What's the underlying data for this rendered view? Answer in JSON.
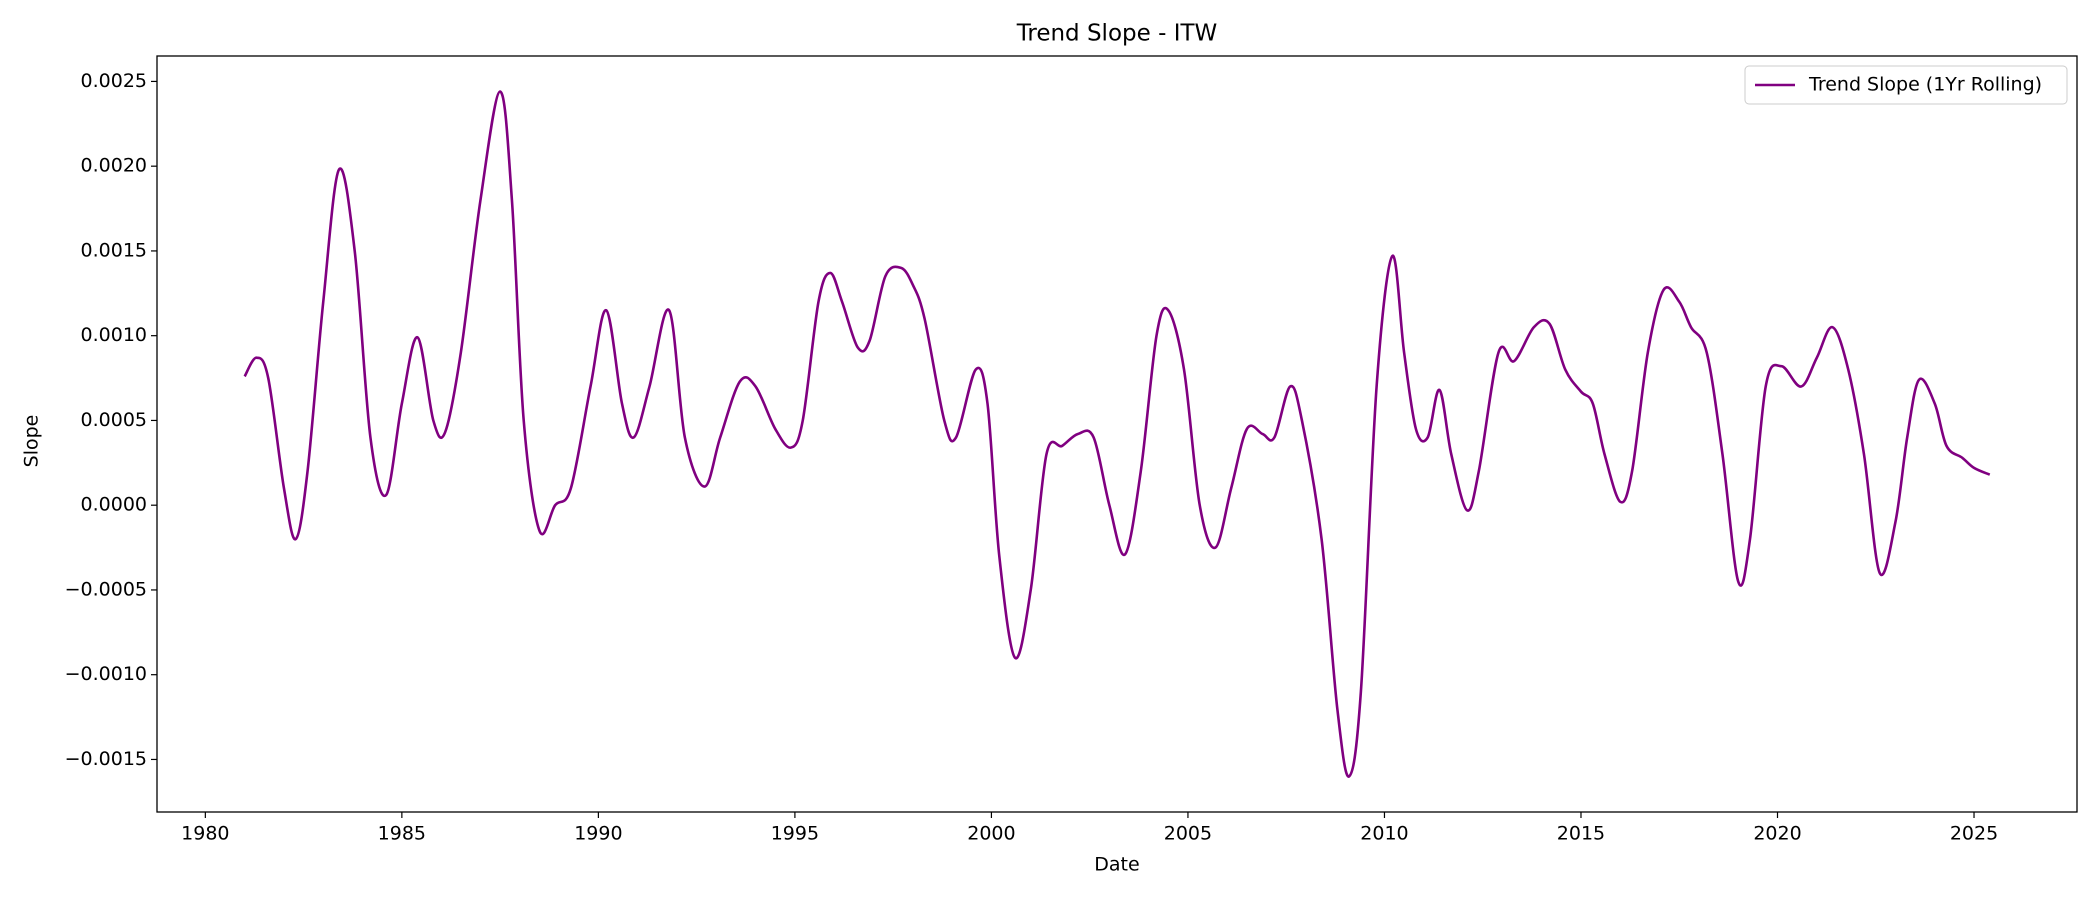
{
  "chart_data": {
    "type": "line",
    "title": "Trend Slope - ITW",
    "x_label": "Date",
    "y_label": "Slope",
    "x": [
      1981.0,
      1981.3,
      1981.6,
      1982.0,
      1982.3,
      1982.6,
      1983.0,
      1983.4,
      1983.8,
      1984.2,
      1984.6,
      1985.0,
      1985.4,
      1985.8,
      1986.1,
      1986.5,
      1987.0,
      1987.5,
      1987.8,
      1988.1,
      1988.5,
      1988.9,
      1989.3,
      1989.8,
      1990.2,
      1990.6,
      1990.9,
      1991.3,
      1991.8,
      1992.2,
      1992.7,
      1993.1,
      1993.6,
      1994.0,
      1994.5,
      1994.9,
      1995.2,
      1995.6,
      1995.9,
      1996.2,
      1996.6,
      1996.9,
      1997.3,
      1997.7,
      1998.0,
      1998.3,
      1998.8,
      1999.1,
      1999.6,
      1999.9,
      2000.2,
      2000.6,
      2001.0,
      2001.4,
      2001.8,
      2002.2,
      2002.6,
      2003.0,
      2003.4,
      2003.8,
      2004.2,
      2004.5,
      2004.9,
      2005.3,
      2005.7,
      2006.1,
      2006.5,
      2006.9,
      2007.2,
      2007.6,
      2007.9,
      2008.4,
      2008.8,
      2009.1,
      2009.4,
      2009.8,
      2010.2,
      2010.5,
      2010.8,
      2011.1,
      2011.4,
      2011.7,
      2012.1,
      2012.4,
      2012.9,
      2013.3,
      2013.8,
      2014.2,
      2014.6,
      2015.0,
      2015.3,
      2015.6,
      2016.0,
      2016.3,
      2016.7,
      2017.1,
      2017.5,
      2017.8,
      2018.2,
      2018.6,
      2019.0,
      2019.3,
      2019.7,
      2020.1,
      2020.6,
      2021.0,
      2021.4,
      2021.8,
      2022.2,
      2022.6,
      2023.0,
      2023.3,
      2023.6,
      2024.0,
      2024.3,
      2024.7,
      2025.0,
      2025.4
    ],
    "series": [
      {
        "name": "Trend Slope (1Yr Rolling)",
        "color": "#800080",
        "values": [
          0.00076,
          0.00087,
          0.00075,
          0.0001,
          -0.0002,
          0.0002,
          0.0012,
          0.00198,
          0.0015,
          0.0004,
          6e-05,
          0.0006,
          0.00099,
          0.0005,
          0.00043,
          0.0009,
          0.0018,
          0.00244,
          0.0018,
          0.0005,
          -0.00015,
          0.0,
          0.0001,
          0.0007,
          0.00115,
          0.0006,
          0.0004,
          0.0007,
          0.00115,
          0.0004,
          0.00011,
          0.0004,
          0.00073,
          0.0007,
          0.00045,
          0.00034,
          0.0005,
          0.0012,
          0.00137,
          0.0012,
          0.00093,
          0.00097,
          0.00135,
          0.0014,
          0.0013,
          0.0011,
          0.0005,
          0.0004,
          0.0008,
          0.0006,
          -0.0003,
          -0.0009,
          -0.0005,
          0.0003,
          0.00035,
          0.00042,
          0.0004,
          0.0,
          -0.00029,
          0.0002,
          0.001,
          0.00115,
          0.0008,
          0.0,
          -0.00025,
          0.0001,
          0.00045,
          0.00042,
          0.0004,
          0.0007,
          0.0005,
          -0.0002,
          -0.0012,
          -0.0016,
          -0.0011,
          0.0007,
          0.00147,
          0.0009,
          0.00045,
          0.0004,
          0.00068,
          0.0003,
          -3e-05,
          0.0002,
          0.0009,
          0.00085,
          0.00105,
          0.00107,
          0.0008,
          0.00067,
          0.0006,
          0.0003,
          2e-05,
          0.0002,
          0.0009,
          0.00127,
          0.0012,
          0.00105,
          0.0009,
          0.0003,
          -0.00045,
          -0.0002,
          0.0007,
          0.00082,
          0.0007,
          0.00087,
          0.00105,
          0.0008,
          0.0003,
          -0.0004,
          -0.0001,
          0.0004,
          0.00074,
          0.0006,
          0.00035,
          0.00028,
          0.00022,
          0.00018
        ]
      }
    ],
    "xlim": [
      1978.77,
      2027.62
    ],
    "xticks": [
      1980,
      1985,
      1990,
      1995,
      2000,
      2005,
      2010,
      2015,
      2020,
      2025
    ],
    "ylim": [
      -0.00181,
      0.00265
    ],
    "yticks": [
      {
        "value": -0.0015,
        "label": "−0.0015"
      },
      {
        "value": -0.001,
        "label": "−0.0010"
      },
      {
        "value": -0.0005,
        "label": "−0.0005"
      },
      {
        "value": 0,
        "label": "0.0000"
      },
      {
        "value": 0.0005,
        "label": "0.0005"
      },
      {
        "value": 0.001,
        "label": "0.0010"
      },
      {
        "value": 0.0015,
        "label": "0.0015"
      },
      {
        "value": 0.002,
        "label": "0.0020"
      },
      {
        "value": 0.0025,
        "label": "0.0025"
      }
    ],
    "grid": false,
    "legend": "upper right"
  }
}
